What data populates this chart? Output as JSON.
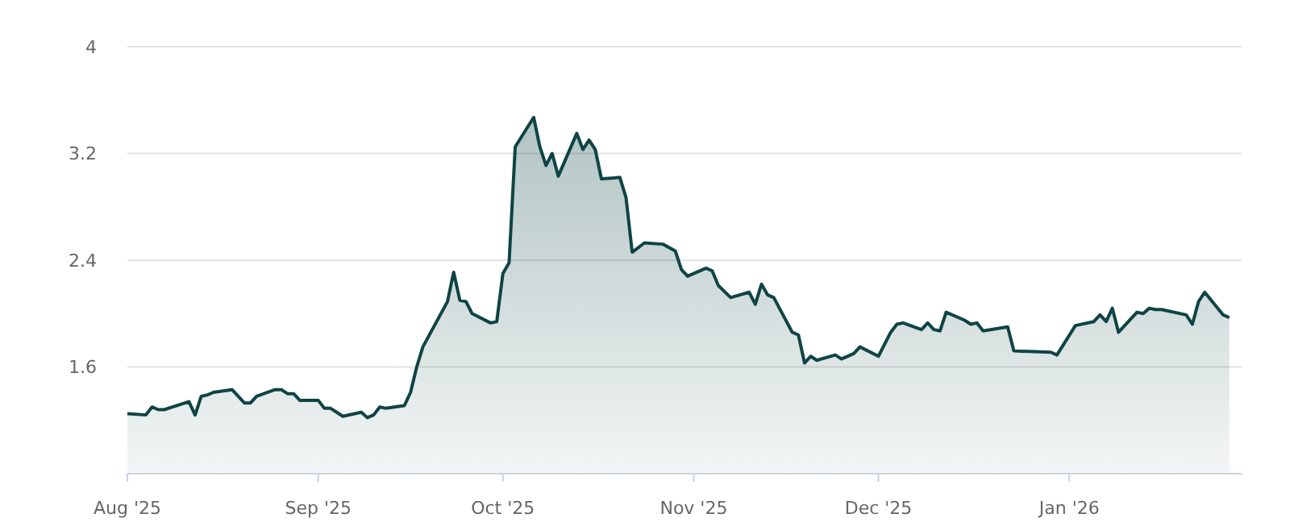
{
  "chart_data": {
    "type": "area",
    "x": [
      "2025-08-01",
      "2025-08-04",
      "2025-08-05",
      "2025-08-06",
      "2025-08-07",
      "2025-08-11",
      "2025-08-12",
      "2025-08-13",
      "2025-08-14",
      "2025-08-15",
      "2025-08-18",
      "2025-08-20",
      "2025-08-21",
      "2025-08-22",
      "2025-08-25",
      "2025-08-26",
      "2025-08-27",
      "2025-08-28",
      "2025-08-29",
      "2025-09-01",
      "2025-09-02",
      "2025-09-03",
      "2025-09-05",
      "2025-09-08",
      "2025-09-09",
      "2025-09-10",
      "2025-09-11",
      "2025-09-12",
      "2025-09-15",
      "2025-09-16",
      "2025-09-17",
      "2025-09-18",
      "2025-09-22",
      "2025-09-23",
      "2025-09-24",
      "2025-09-25",
      "2025-09-26",
      "2025-09-29",
      "2025-09-30",
      "2025-10-01",
      "2025-10-02",
      "2025-10-03",
      "2025-10-06",
      "2025-10-07",
      "2025-10-08",
      "2025-10-09",
      "2025-10-10",
      "2025-10-13",
      "2025-10-14",
      "2025-10-15",
      "2025-10-16",
      "2025-10-17",
      "2025-10-20",
      "2025-10-21",
      "2025-10-22",
      "2025-10-24",
      "2025-10-27",
      "2025-10-29",
      "2025-10-30",
      "2025-10-31",
      "2025-11-03",
      "2025-11-04",
      "2025-11-05",
      "2025-11-07",
      "2025-11-10",
      "2025-11-11",
      "2025-11-12",
      "2025-11-13",
      "2025-11-14",
      "2025-11-17",
      "2025-11-18",
      "2025-11-19",
      "2025-11-20",
      "2025-11-21",
      "2025-11-24",
      "2025-11-25",
      "2025-11-27",
      "2025-11-28",
      "2025-12-01",
      "2025-12-03",
      "2025-12-04",
      "2025-12-05",
      "2025-12-08",
      "2025-12-09",
      "2025-12-10",
      "2025-12-11",
      "2025-12-12",
      "2025-12-15",
      "2025-12-16",
      "2025-12-17",
      "2025-12-18",
      "2025-12-22",
      "2025-12-23",
      "2025-12-29",
      "2025-12-30",
      "2026-01-02",
      "2026-01-05",
      "2026-01-06",
      "2026-01-07",
      "2026-01-08",
      "2026-01-09",
      "2026-01-12",
      "2026-01-13",
      "2026-01-14",
      "2026-01-15",
      "2026-01-16",
      "2026-01-20",
      "2026-01-21",
      "2026-01-22",
      "2026-01-23",
      "2026-01-26",
      "2026-01-27"
    ],
    "series": [
      {
        "color": "#0f4444",
        "values": [
          1.25,
          1.24,
          1.3,
          1.28,
          1.28,
          1.34,
          1.24,
          1.38,
          1.39,
          1.41,
          1.43,
          1.33,
          1.33,
          1.38,
          1.43,
          1.43,
          1.4,
          1.4,
          1.35,
          1.35,
          1.29,
          1.29,
          1.23,
          1.26,
          1.22,
          1.24,
          1.3,
          1.29,
          1.31,
          1.41,
          1.6,
          1.75,
          2.09,
          2.31,
          2.1,
          2.09,
          2,
          1.93,
          1.94,
          2.3,
          2.38,
          3.25,
          3.47,
          3.25,
          3.11,
          3.2,
          3.03,
          3.35,
          3.23,
          3.3,
          3.23,
          3.01,
          3.02,
          2.87,
          2.46,
          2.53,
          2.52,
          2.47,
          2.33,
          2.28,
          2.34,
          2.32,
          2.21,
          2.12,
          2.16,
          2.07,
          2.22,
          2.14,
          2.12,
          1.86,
          1.84,
          1.63,
          1.68,
          1.65,
          1.69,
          1.66,
          1.7,
          1.75,
          1.68,
          1.86,
          1.92,
          1.93,
          1.88,
          1.93,
          1.88,
          1.87,
          2.01,
          1.95,
          1.92,
          1.93,
          1.87,
          1.9,
          1.72,
          1.71,
          1.69,
          1.91,
          1.94,
          1.99,
          1.94,
          2.04,
          1.86,
          2.01,
          2,
          2.04,
          2.03,
          2.03,
          1.99,
          1.92,
          2.09,
          2.16,
          1.99,
          1.97
        ]
      }
    ],
    "xlim": [
      "2025-08-01",
      "2026-01-29"
    ],
    "xticks": [
      {
        "value": "2025-08-01",
        "label": "Aug '25"
      },
      {
        "value": "2025-09-01",
        "label": "Sep '25"
      },
      {
        "value": "2025-10-01",
        "label": "Oct '25"
      },
      {
        "value": "2025-11-01",
        "label": "Nov '25"
      },
      {
        "value": "2025-12-01",
        "label": "Dec '25"
      },
      {
        "value": "2026-01-01",
        "label": "Jan '26"
      }
    ],
    "ylim": [
      0.8,
      4
    ],
    "yticks": [
      1.6,
      2.4,
      3.2,
      4
    ],
    "grid": "y",
    "marker": "none",
    "line_style": "solid"
  }
}
